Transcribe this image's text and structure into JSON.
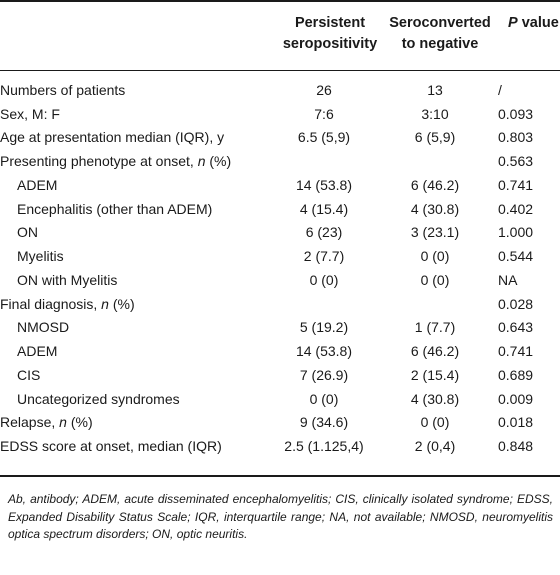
{
  "header": {
    "col1": [
      "Persistent",
      "seropositivity"
    ],
    "col2": [
      "Seroconverted",
      "to negative"
    ],
    "col3_italic": "P",
    "col3_rest": " value"
  },
  "rows": [
    {
      "label": "Numbers of patients",
      "persistent": "26",
      "seroconverted": "13",
      "p": "/",
      "indent": false
    },
    {
      "label": "Sex, M: F",
      "persistent": "7:6",
      "seroconverted": "3:10",
      "p": "0.093",
      "indent": false
    },
    {
      "label": "Age at presentation median (IQR), y",
      "persistent": "6.5 (5,9)",
      "seroconverted": "6 (5,9)",
      "p": "0.803",
      "indent": false
    },
    {
      "label": "Presenting phenotype at onset, ",
      "label_italic": "n",
      "label_suffix": " (%)",
      "persistent": "",
      "seroconverted": "",
      "p": "0.563",
      "indent": false
    },
    {
      "label": "ADEM",
      "persistent": "14 (53.8)",
      "seroconverted": "6 (46.2)",
      "p": "0.741",
      "indent": true
    },
    {
      "label": "Encephalitis (other than ADEM)",
      "persistent": "4 (15.4)",
      "seroconverted": "4 (30.8)",
      "p": "0.402",
      "indent": true
    },
    {
      "label": "ON",
      "persistent": "6 (23)",
      "seroconverted": "3 (23.1)",
      "p": "1.000",
      "indent": true
    },
    {
      "label": "Myelitis",
      "persistent": "2 (7.7)",
      "seroconverted": "0 (0)",
      "p": "0.544",
      "indent": true
    },
    {
      "label": "ON with Myelitis",
      "persistent": "0 (0)",
      "seroconverted": "0 (0)",
      "p": "NA",
      "indent": true
    },
    {
      "label": "Final diagnosis, ",
      "label_italic": "n",
      "label_suffix": " (%)",
      "persistent": "",
      "seroconverted": "",
      "p": "0.028",
      "indent": false
    },
    {
      "label": "NMOSD",
      "persistent": "5 (19.2)",
      "seroconverted": "1 (7.7)",
      "p": "0.643",
      "indent": true
    },
    {
      "label": "ADEM",
      "persistent": "14 (53.8)",
      "seroconverted": "6 (46.2)",
      "p": "0.741",
      "indent": true
    },
    {
      "label": "CIS",
      "persistent": "7 (26.9)",
      "seroconverted": "2 (15.4)",
      "p": "0.689",
      "indent": true
    },
    {
      "label": "Uncategorized syndromes",
      "persistent": "0 (0)",
      "seroconverted": "4 (30.8)",
      "p": "0.009",
      "indent": true
    },
    {
      "label": "Relapse, ",
      "label_italic": "n",
      "label_suffix": " (%)",
      "persistent": "9 (34.6)",
      "seroconverted": "0 (0)",
      "p": "0.018",
      "indent": false
    },
    {
      "label": "EDSS score at onset, median (IQR)",
      "persistent": "2.5 (1.125,4)",
      "seroconverted": "2 (0,4)",
      "p": "0.848",
      "indent": false
    }
  ],
  "footnote": "Ab, antibody; ADEM, acute disseminated encephalomyelitis; CIS, clinically isolated syndrome; EDSS, Expanded Disability Status Scale; IQR, interquartile range; NA, not available; NMOSD, neuromyelitis optica spectrum disorders; ON, optic neuritis."
}
